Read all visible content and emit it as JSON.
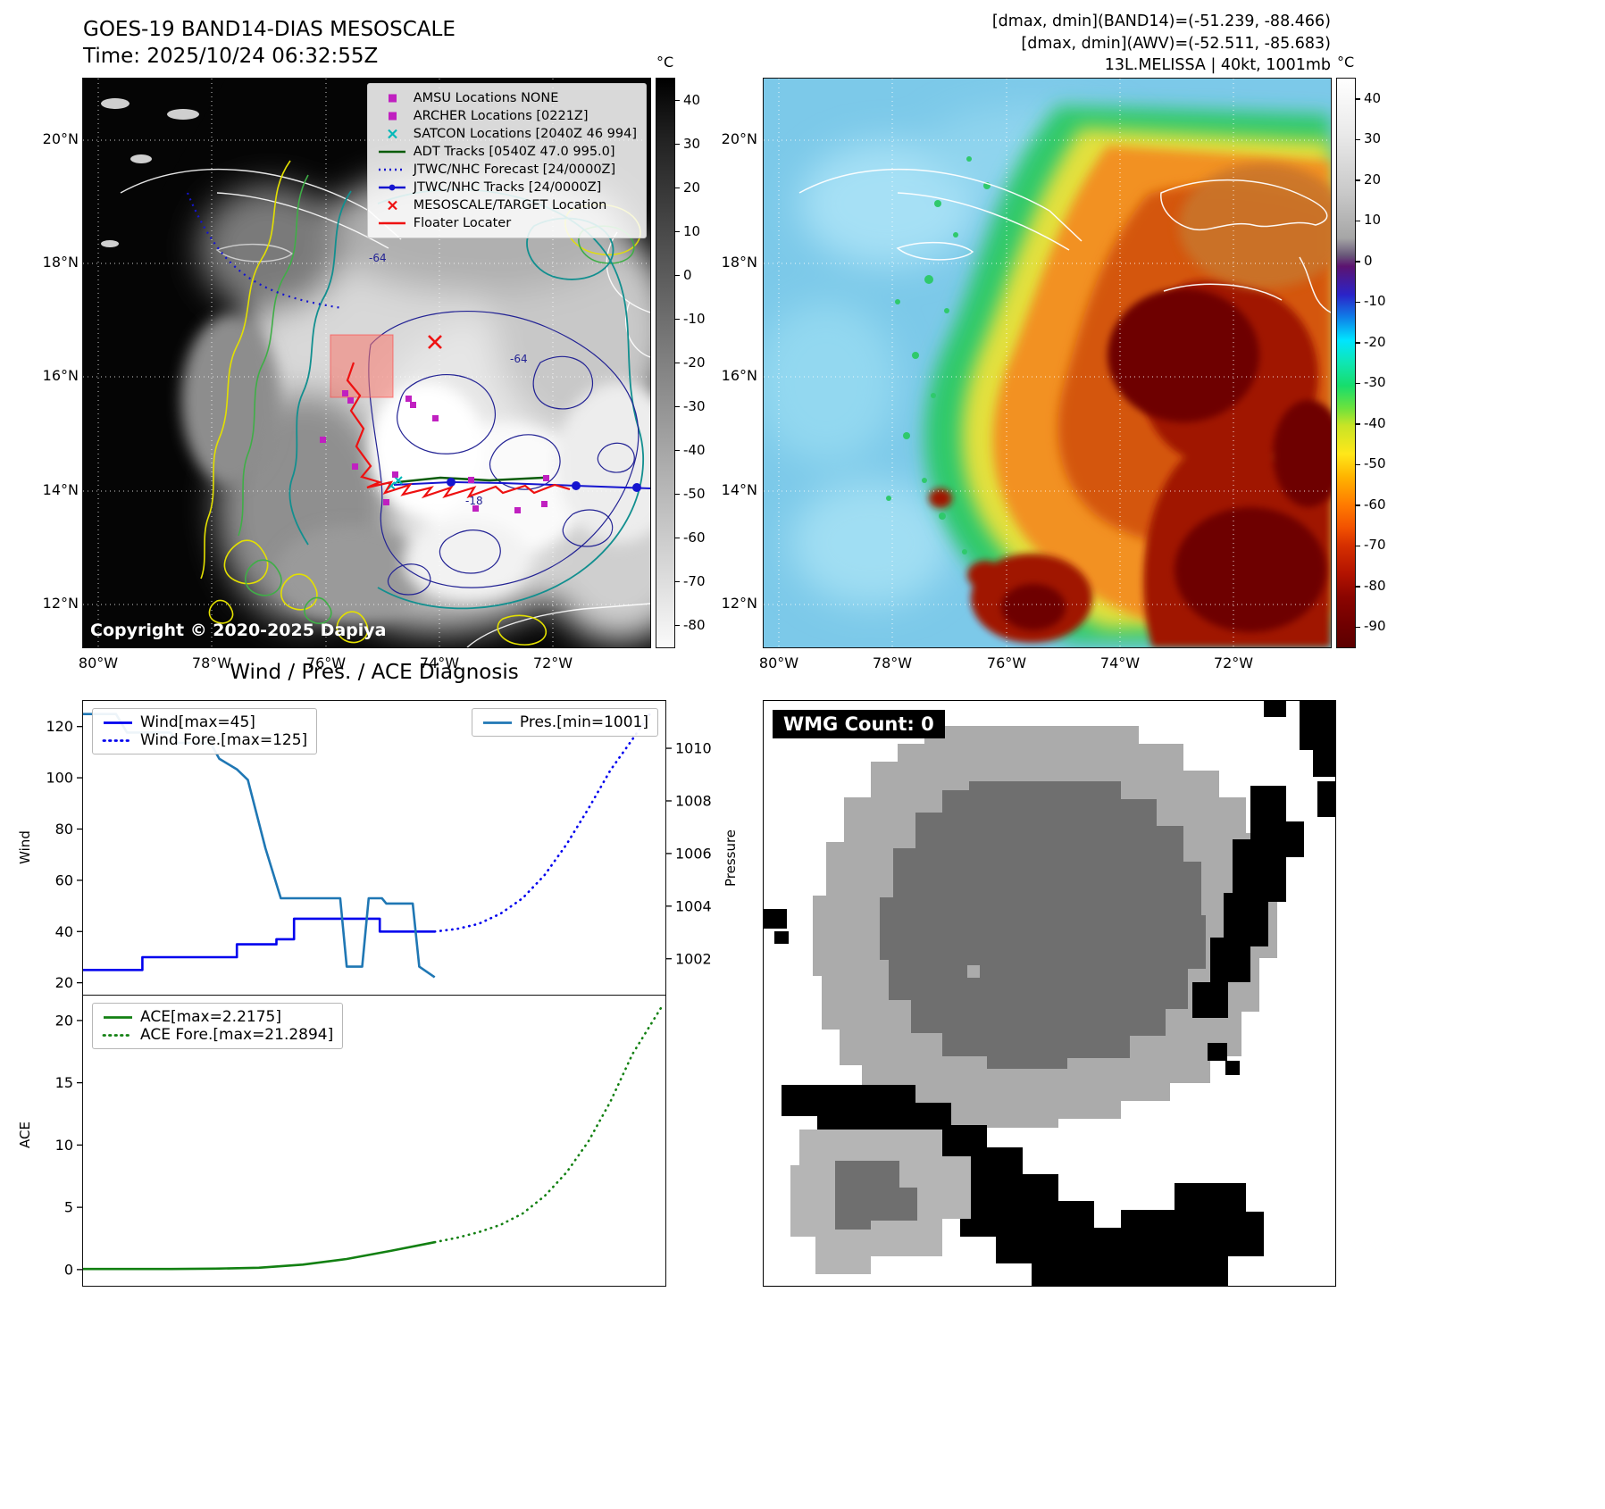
{
  "panel_tl": {
    "title": "GOES-19 BAND14-DIAS MESOSCALE",
    "time_line": "Time: 2025/10/24 06:32:55Z",
    "copyright": "Copyright © 2020-2025 Dapiya",
    "legend": [
      {
        "label": "AMSU Locations NONE",
        "marker": "square",
        "color": "#c020c0",
        "icon": "amsu-square-icon"
      },
      {
        "label": "ARCHER Locations [0221Z]",
        "marker": "square",
        "color": "#c020c0",
        "icon": "archer-square-icon"
      },
      {
        "label": "SATCON Locations [2040Z 46 994]",
        "marker": "x",
        "color": "#00b8b8",
        "icon": "satcon-x-icon"
      },
      {
        "label": "ADT Tracks [0540Z 47.0 995.0]",
        "marker": "line",
        "color": "#0a5c0a",
        "icon": "adt-line-icon"
      },
      {
        "label": "JTWC/NHC Forecast [24/0000Z]",
        "marker": "dotted",
        "color": "#1515cf",
        "icon": "jtwc-forecast-line-icon"
      },
      {
        "label": "JTWC/NHC Tracks [24/0000Z]",
        "marker": "line-dot",
        "color": "#1515cf",
        "icon": "jtwc-track-line-icon"
      },
      {
        "label": "MESOSCALE/TARGET Location",
        "marker": "x",
        "color": "#ee1111",
        "icon": "mesoscale-target-x-icon"
      },
      {
        "label": "Floater Locater",
        "marker": "line",
        "color": "#ee1111",
        "icon": "floater-line-icon"
      }
    ],
    "lat_ticks": [
      "20°N",
      "18°N",
      "16°N",
      "14°N",
      "12°N"
    ],
    "lon_ticks": [
      "80°W",
      "78°W",
      "76°W",
      "74°W",
      "72°W"
    ],
    "contour_labels": [
      "-64",
      "-64",
      "-18"
    ],
    "colorbar": {
      "unit": "°C",
      "vmax": 45,
      "vmin": -85,
      "ticks": [
        "40",
        "30",
        "20",
        "10",
        "0",
        "-10",
        "-20",
        "-30",
        "-40",
        "-50",
        "-60",
        "-70",
        "-80"
      ]
    }
  },
  "panel_tr": {
    "header_lines": [
      "[dmax, dmin](BAND14)=(-51.239, -88.466)",
      "[dmax, dmin](AWV)=(-52.511, -85.683)",
      "13L.MELISSA | 40kt, 1001mb"
    ],
    "lat_ticks": [
      "20°N",
      "18°N",
      "16°N",
      "14°N",
      "12°N"
    ],
    "lon_ticks": [
      "80°W",
      "78°W",
      "76°W",
      "74°W",
      "72°W"
    ],
    "colorbar": {
      "unit": "°C",
      "vmax": 45,
      "vmin": -95,
      "ticks": [
        "40",
        "30",
        "20",
        "10",
        "0",
        "-10",
        "-20",
        "-30",
        "-40",
        "-50",
        "-60",
        "-70",
        "-80",
        "-90"
      ]
    }
  },
  "panel_bl": {
    "title": "Wind / Pres. / ACE Diagnosis"
  },
  "panel_br": {
    "wmg_label": "WMG Count: 0"
  },
  "chart_data": [
    {
      "type": "line",
      "name": "wind-pressure",
      "xlim": [
        0,
        26.5
      ],
      "left_axis": {
        "label": "Wind",
        "ylim": [
          15,
          130
        ],
        "yticks": [
          20,
          40,
          60,
          80,
          100,
          120
        ]
      },
      "right_axis": {
        "label": "Pressure",
        "ylim": [
          1000.6,
          1011.8
        ],
        "yticks": [
          1002,
          1004,
          1006,
          1008,
          1010
        ]
      },
      "series": [
        {
          "name": "Wind[max=45]",
          "axis": "left",
          "style": "solid",
          "color": "#0000ee",
          "x": [
            0,
            2.7,
            2.7,
            7,
            7,
            8.8,
            8.8,
            9.6,
            9.6,
            13.5,
            13.5,
            16
          ],
          "y": [
            25,
            25,
            30,
            30,
            35,
            35,
            37,
            37,
            45,
            45,
            40,
            40
          ]
        },
        {
          "name": "Wind Fore.[max=125]",
          "axis": "left",
          "style": "dotted",
          "color": "#0000ee",
          "x": [
            16,
            17,
            18,
            19,
            20,
            21,
            22,
            23,
            24,
            25,
            25.8
          ],
          "y": [
            40,
            41,
            43,
            47,
            53,
            62,
            74,
            88,
            103,
            115,
            125
          ]
        },
        {
          "name": "Pres.[min=1001]",
          "axis": "right",
          "style": "solid",
          "color": "#1f77b4",
          "x": [
            0,
            1.5,
            2,
            4,
            4.3,
            5.8,
            6.2,
            7,
            7.5,
            8.3,
            9,
            11.7,
            12,
            12.7,
            13,
            13.6,
            13.8,
            15,
            15.3,
            16
          ],
          "y": [
            1011.3,
            1011.3,
            1010.6,
            1010.6,
            1010.2,
            1010.2,
            1009.6,
            1009.2,
            1008.8,
            1006.2,
            1004.3,
            1004.3,
            1001.7,
            1001.7,
            1004.3,
            1004.3,
            1004.1,
            1004.1,
            1001.7,
            1001.3
          ]
        }
      ],
      "legends": [
        {
          "loc": "upper-left",
          "entries": [
            0,
            1
          ]
        },
        {
          "loc": "upper-right",
          "entries": [
            2
          ]
        }
      ]
    },
    {
      "type": "line",
      "name": "ace",
      "xlim": [
        0,
        26.5
      ],
      "left_axis": {
        "label": "ACE",
        "ylim": [
          -1.3,
          22
        ],
        "yticks": [
          0,
          5,
          10,
          15,
          20
        ]
      },
      "series": [
        {
          "name": "ACE[max=2.2175]",
          "axis": "left",
          "style": "solid",
          "color": "#128012",
          "x": [
            0,
            2,
            4,
            6,
            8,
            10,
            12,
            14,
            16
          ],
          "y": [
            0.05,
            0.05,
            0.05,
            0.08,
            0.15,
            0.4,
            0.85,
            1.5,
            2.2
          ]
        },
        {
          "name": "ACE Fore.[max=21.2894]",
          "axis": "left",
          "style": "dotted",
          "color": "#128012",
          "x": [
            16,
            17,
            18,
            19,
            20,
            21,
            22,
            23,
            24,
            25,
            26.4
          ],
          "y": [
            2.2,
            2.55,
            3.0,
            3.6,
            4.5,
            5.9,
            7.8,
            10.3,
            13.5,
            17.3,
            21.3
          ]
        }
      ],
      "legends": [
        {
          "loc": "upper-left",
          "entries": [
            0,
            1
          ]
        }
      ]
    }
  ]
}
